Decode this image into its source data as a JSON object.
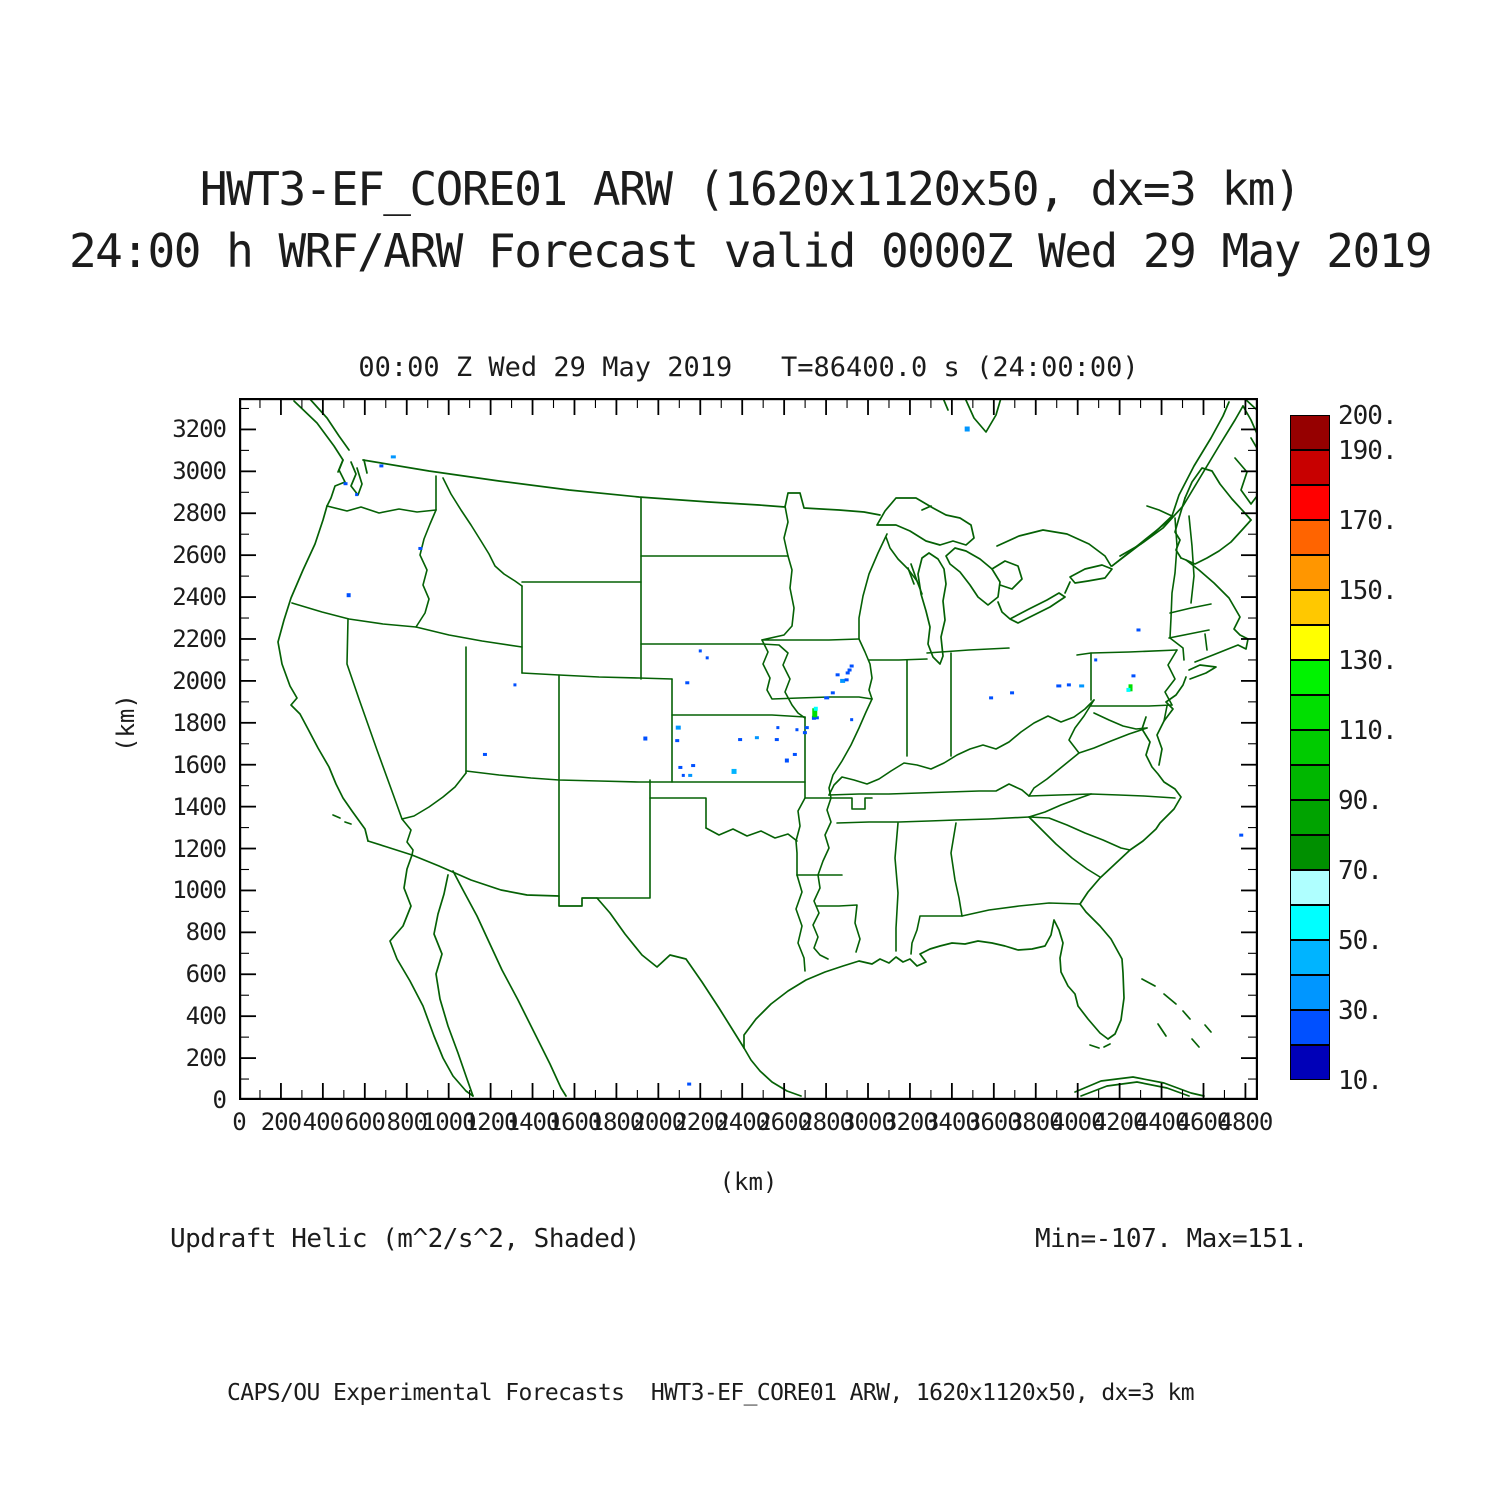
{
  "header": {
    "line1": "HWT3-EF_CORE01 ARW (1620x1120x50, dx=3 km)",
    "line2": "24:00 h WRF/ARW Forecast valid 0000Z Wed 29 May 2019"
  },
  "footer": {
    "text": "CAPS/OU Experimental Forecasts  HWT3-EF_CORE01 ARW, 1620x1120x50, dx=3 km"
  },
  "colors": {
    "map_outline": "#056105",
    "frame": "#000000",
    "text": "#1c1c1c"
  },
  "chart_data": {
    "type": "heatmap",
    "title": "00:00 Z Wed 29 May 2019   T=86400.0 s (24:00:00)",
    "field_name": "Updraft Helicity",
    "units": "m^2/s^2",
    "region": "Continental United States",
    "annotation_left": "Updraft Helic (m^2/s^2, Shaded)",
    "annotation_right": "Min=-107. Max=151.",
    "min": -107,
    "max": 151,
    "xlabel": "(km)",
    "ylabel": "(km)",
    "xlim": [
      0,
      4860
    ],
    "ylim": [
      0,
      3350
    ],
    "grid": false,
    "xticks": [
      0,
      200,
      400,
      600,
      800,
      1000,
      1200,
      1400,
      1600,
      1800,
      2000,
      2200,
      2400,
      2600,
      2800,
      3000,
      3200,
      3400,
      3600,
      3800,
      4000,
      4200,
      4400,
      4600,
      4800
    ],
    "yticks": [
      0,
      200,
      400,
      600,
      800,
      1000,
      1200,
      1400,
      1600,
      1800,
      2000,
      2200,
      2400,
      2600,
      2800,
      3000,
      3200
    ],
    "minor_tick_interval": 100,
    "colorbar": {
      "position": "right",
      "levels": [
        10,
        20,
        30,
        40,
        50,
        60,
        70,
        80,
        90,
        100,
        110,
        120,
        130,
        140,
        150,
        160,
        170,
        180,
        190,
        200
      ],
      "colors": [
        "#0000B8",
        "#0050FF",
        "#0096FF",
        "#00B4FF",
        "#00FFFF",
        "#AFFFFF",
        "#008F00",
        "#00A300",
        "#00B700",
        "#00CB00",
        "#00DF00",
        "#00F300",
        "#FFFF00",
        "#FFC800",
        "#FF9600",
        "#FF6400",
        "#FF0000",
        "#C80000",
        "#960000"
      ],
      "tick_levels": [
        10,
        30,
        50,
        70,
        90,
        110,
        130,
        150,
        170,
        190,
        200
      ],
      "tick_labels": [
        "10.",
        "30.",
        "50.",
        "70.",
        "90.",
        "110.",
        "130.",
        "150.",
        "170.",
        "190.",
        "200."
      ]
    },
    "cells_format": [
      "x_km",
      "y_km",
      "value",
      "w_px",
      "h_px"
    ],
    "cells": [
      [
        508,
        2941,
        25,
        4,
        3
      ],
      [
        679,
        3026,
        25,
        4,
        3
      ],
      [
        736,
        3069,
        35,
        5,
        3
      ],
      [
        561,
        2889,
        25,
        3,
        3
      ],
      [
        865,
        2632,
        25,
        4,
        3
      ],
      [
        523,
        2409,
        25,
        4,
        4
      ],
      [
        3473,
        3202,
        35,
        5,
        5
      ],
      [
        2200,
        2143,
        25,
        3,
        3
      ],
      [
        2138,
        1991,
        25,
        4,
        3
      ],
      [
        2233,
        2110,
        25,
        3,
        3
      ],
      [
        1316,
        1981,
        25,
        3,
        3
      ],
      [
        1173,
        1649,
        25,
        4,
        3
      ],
      [
        1938,
        1725,
        25,
        4,
        4
      ],
      [
        2095,
        1777,
        35,
        5,
        4
      ],
      [
        2090,
        1715,
        25,
        4,
        3
      ],
      [
        2105,
        1587,
        25,
        4,
        3
      ],
      [
        2166,
        1596,
        25,
        4,
        3
      ],
      [
        2119,
        1549,
        25,
        3,
        3
      ],
      [
        2152,
        1549,
        35,
        4,
        3
      ],
      [
        2361,
        1568,
        45,
        5,
        5
      ],
      [
        2390,
        1720,
        25,
        4,
        3
      ],
      [
        2470,
        1729,
        35,
        4,
        3
      ],
      [
        2565,
        1720,
        25,
        4,
        3
      ],
      [
        2570,
        1777,
        25,
        3,
        3
      ],
      [
        2613,
        1620,
        25,
        4,
        4
      ],
      [
        2651,
        1649,
        25,
        4,
        3
      ],
      [
        2699,
        1753,
        25,
        4,
        3
      ],
      [
        2661,
        1767,
        25,
        3,
        3
      ],
      [
        2708,
        1777,
        25,
        4,
        3
      ],
      [
        2756,
        1824,
        25,
        4,
        3
      ],
      [
        2803,
        1919,
        25,
        5,
        3
      ],
      [
        2832,
        1943,
        25,
        4,
        3
      ],
      [
        2879,
        2000,
        35,
        5,
        4
      ],
      [
        2903,
        2038,
        25,
        4,
        3
      ],
      [
        2922,
        2071,
        25,
        4,
        3
      ],
      [
        2742,
        1824,
        25,
        4,
        4
      ],
      [
        2746,
        1848,
        115,
        5,
        9
      ],
      [
        2751,
        1867,
        55,
        4,
        4
      ],
      [
        2912,
        2052,
        25,
        4,
        3
      ],
      [
        2898,
        2005,
        25,
        4,
        3
      ],
      [
        2855,
        2029,
        25,
        4,
        3
      ],
      [
        2922,
        1815,
        25,
        3,
        3
      ],
      [
        3587,
        1919,
        25,
        4,
        3
      ],
      [
        3687,
        1943,
        25,
        4,
        3
      ],
      [
        3910,
        1976,
        25,
        5,
        3
      ],
      [
        3958,
        1981,
        25,
        4,
        3
      ],
      [
        4019,
        1976,
        35,
        5,
        3
      ],
      [
        4266,
        2024,
        25,
        4,
        3
      ],
      [
        4086,
        2100,
        25,
        3,
        3
      ],
      [
        4290,
        2243,
        25,
        4,
        3
      ],
      [
        4252,
        1967,
        115,
        4,
        7
      ],
      [
        4242,
        1957,
        55,
        4,
        4
      ],
      [
        2147,
        76,
        25,
        4,
        3
      ],
      [
        4780,
        1264,
        25,
        4,
        3
      ]
    ]
  }
}
